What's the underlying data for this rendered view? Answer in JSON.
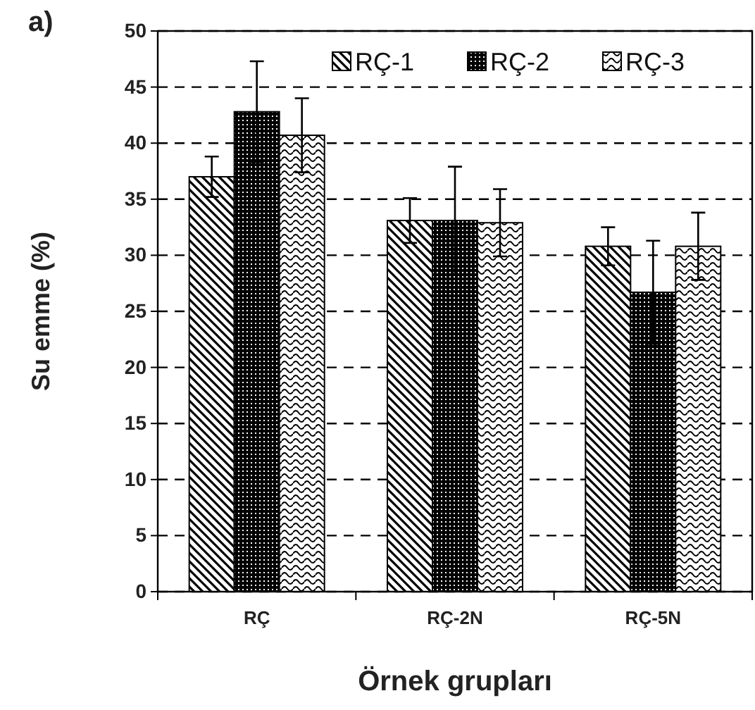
{
  "chart_data": {
    "type": "bar",
    "annotations": [
      "a)"
    ],
    "xlabel": "Örnek grupları",
    "ylabel": "Su emme (%)",
    "categories": [
      "RÇ",
      "RÇ-2N",
      "RÇ-5N"
    ],
    "series": [
      {
        "name": "RÇ-1",
        "color": "#000000",
        "values": [
          37,
          33.1,
          30.8
        ],
        "errors": [
          1.8,
          2,
          1.7
        ]
      },
      {
        "name": "RÇ-2",
        "color": "#000000",
        "values": [
          42.8,
          33.1,
          26.7
        ],
        "errors": [
          4.5,
          4.8,
          4.6
        ]
      },
      {
        "name": "RÇ-3",
        "color": "#000000",
        "values": [
          40.7,
          32.9,
          30.8
        ],
        "errors": [
          3.3,
          3,
          3
        ]
      }
    ],
    "ylim": [
      0,
      50
    ],
    "yticks": [
      0,
      5,
      10,
      15,
      20,
      25,
      30,
      35,
      40,
      45,
      50
    ],
    "grid": "y",
    "legend": "top right"
  }
}
